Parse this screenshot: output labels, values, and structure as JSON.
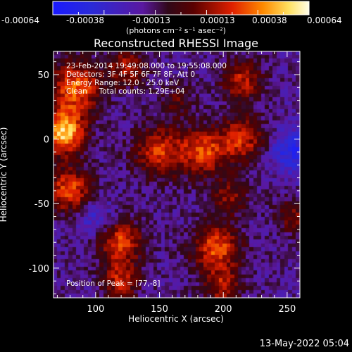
{
  "chart_data": {
    "type": "heatmap",
    "title": "Reconstructed RHESSI Image",
    "xlabel": "Heliocentric X (arcsec)",
    "ylabel": "Heliocentric Y (arcsec)",
    "xlim": [
      67,
      260
    ],
    "ylim": [
      -123,
      68
    ],
    "x_ticks": [
      100,
      150,
      200,
      250
    ],
    "y_ticks": [
      50,
      0,
      -50,
      -100
    ],
    "colorbar": {
      "ticks": [
        "-0.00064",
        "-0.00038",
        "-0.00013",
        "0.00013",
        "0.00038",
        "0.00064"
      ],
      "range": [
        -0.00064,
        0.00064
      ],
      "units_label": "(photons cm⁻² s⁻¹ asec⁻²)"
    },
    "annotations": [
      "23-Feb-2014 19:49:08.000 to 19:55:08.000",
      "Detectors: 3F 4F 5F 6F 7F 8F, Att 0",
      "Energy Range: 12.0 - 25.0 keV",
      "Clean     Total counts: 1.29E+04"
    ],
    "peak_label": "Position of Peak = [77,-8]",
    "peak_position": [
      77,
      -8
    ],
    "intensity_blobs": [
      {
        "x": 75,
        "y": 5,
        "sigma": 12,
        "amp": 1.0
      },
      {
        "x": 85,
        "y": 40,
        "sigma": 14,
        "amp": 0.75
      },
      {
        "x": 80,
        "y": -40,
        "sigma": 12,
        "amp": 0.7
      },
      {
        "x": 125,
        "y": 55,
        "sigma": 10,
        "amp": 0.5
      },
      {
        "x": 150,
        "y": -10,
        "sigma": 14,
        "amp": 0.6
      },
      {
        "x": 185,
        "y": -10,
        "sigma": 13,
        "amp": 0.65
      },
      {
        "x": 215,
        "y": 0,
        "sigma": 12,
        "amp": 0.6
      },
      {
        "x": 215,
        "y": 45,
        "sigma": 11,
        "amp": 0.55
      },
      {
        "x": 205,
        "y": -45,
        "sigma": 10,
        "amp": 0.4
      },
      {
        "x": 120,
        "y": -80,
        "sigma": 12,
        "amp": 0.65
      },
      {
        "x": 120,
        "y": -110,
        "sigma": 10,
        "amp": 0.55
      },
      {
        "x": 195,
        "y": -85,
        "sigma": 13,
        "amp": 0.7
      },
      {
        "x": 200,
        "y": -115,
        "sigma": 10,
        "amp": 0.5
      },
      {
        "x": 255,
        "y": -60,
        "sigma": 10,
        "amp": 0.35
      },
      {
        "x": 165,
        "y": 30,
        "sigma": 9,
        "amp": 0.3
      },
      {
        "x": 255,
        "y": -10,
        "sigma": 12,
        "amp": -0.45
      },
      {
        "x": 100,
        "y": -60,
        "sigma": 10,
        "amp": -0.3
      }
    ]
  },
  "footer": {
    "date": "13-May-2022 05:04"
  }
}
